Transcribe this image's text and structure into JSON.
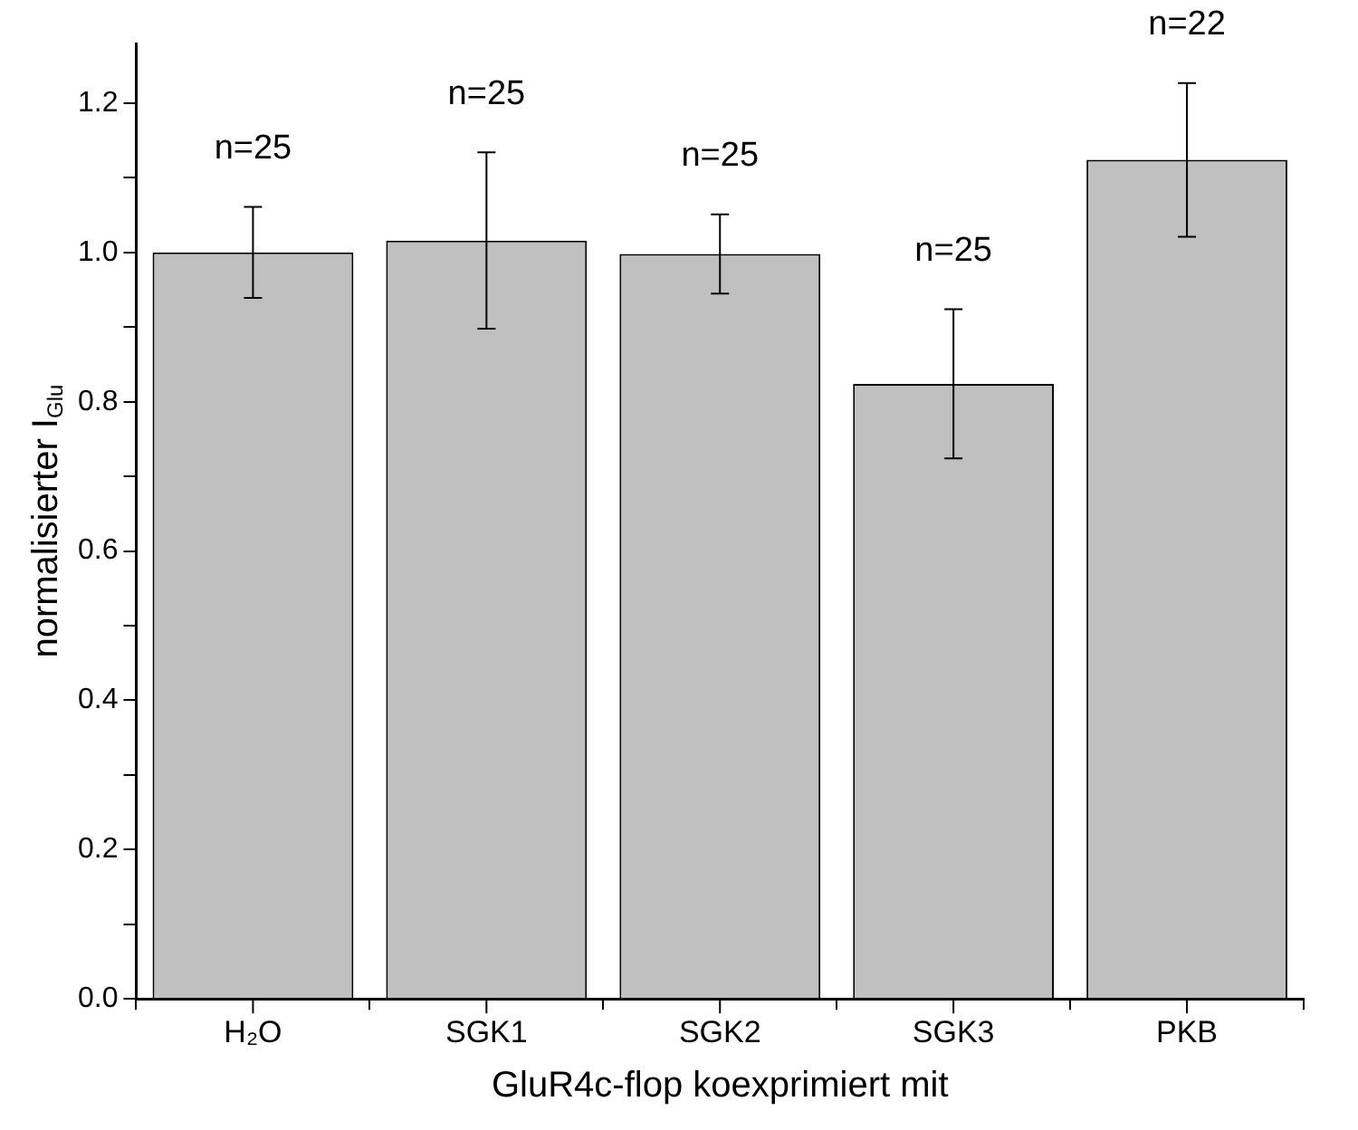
{
  "chart_data": {
    "type": "bar",
    "xlabel": "GluR4c-flop koexprimiert mit",
    "ylabel": "normalisierter I$_{Glu}$",
    "categories": [
      "H₂O",
      "SGK1",
      "SGK2",
      "SGK3",
      "PKB"
    ],
    "values": [
      1.0,
      1.016,
      0.998,
      0.824,
      1.124
    ],
    "errors": [
      0.061,
      0.118,
      0.053,
      0.1,
      0.103
    ],
    "color": "#c0c0c0",
    "ylim": [
      0,
      1.28
    ],
    "yticks": [
      {
        "value": 0,
        "label": "0.0"
      },
      {
        "value": 0.1,
        "label": null
      },
      0.2,
      {
        "value": 0.3,
        "label": null
      },
      0.4,
      {
        "value": 0.5,
        "label": null
      },
      0.6,
      {
        "value": 0.7,
        "label": null
      },
      0.8,
      {
        "value": 0.9,
        "label": null
      },
      {
        "value": 1,
        "label": "1.0"
      },
      {
        "value": 1.1,
        "label": null
      },
      1.2
    ],
    "annotations": [
      {
        "text": "n=25",
        "x": "H₂O",
        "y": 1.061
      },
      {
        "text": "n=25",
        "x": "SGK1",
        "y": 1.134
      },
      {
        "text": "n=25",
        "x": "SGK2",
        "y": 1.051
      },
      {
        "text": "n=25",
        "x": "SGK3",
        "y": 0.924
      },
      {
        "text": "n=22",
        "x": "PKB",
        "y": 1.227
      }
    ],
    "grid": false,
    "legend": false
  }
}
